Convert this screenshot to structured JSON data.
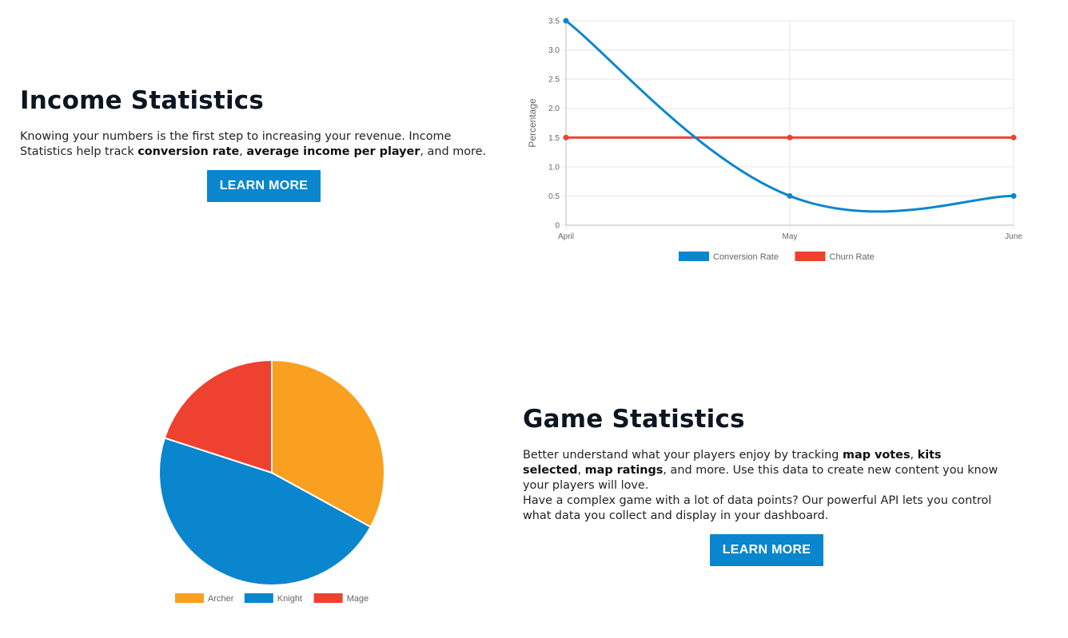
{
  "income": {
    "title": "Income Statistics",
    "desc_1": "Knowing your numbers is the first step to increasing your revenue. Income Statistics help track ",
    "bold_1": "conversion rate",
    "sep_1": ", ",
    "bold_2": "average income per player",
    "desc_2": ", and more.",
    "button_label": "LEARN MORE"
  },
  "game": {
    "title": "Game Statistics",
    "p1_a": "Better understand what your players enjoy by tracking ",
    "bold_1": "map votes",
    "sep_1": ", ",
    "bold_2": "kits selected",
    "sep_2": ", ",
    "bold_3": "map ratings",
    "p1_b": ", and more. Use this data to create new content you know your players will love.",
    "p2": "Have a complex game with a lot of data points? Our powerful API lets you control what data you collect and display in your dashboard.",
    "button_label": "LEARN MORE"
  },
  "chart_data": [
    {
      "type": "line",
      "categories": [
        "April",
        "May",
        "June"
      ],
      "ylabel": "Percentage",
      "ylim": [
        0,
        3.5
      ],
      "yticks": [
        "0",
        "0.5",
        "1.0",
        "1.5",
        "2.0",
        "2.5",
        "3.0",
        "3.5"
      ],
      "grid": true,
      "legend": "bottom",
      "series": [
        {
          "name": "Conversion Rate",
          "values": [
            3.5,
            0.5,
            0.5
          ],
          "color": "#0a86ce"
        },
        {
          "name": "Churn Rate",
          "values": [
            1.5,
            1.5,
            1.5
          ],
          "color": "#ef4130"
        }
      ]
    },
    {
      "type": "pie",
      "legend": "bottom",
      "slices": [
        {
          "name": "Archer",
          "value": 33,
          "color": "#f9a020"
        },
        {
          "name": "Knight",
          "value": 47,
          "color": "#0a86ce"
        },
        {
          "name": "Mage",
          "value": 20,
          "color": "#ef4130"
        }
      ]
    }
  ]
}
